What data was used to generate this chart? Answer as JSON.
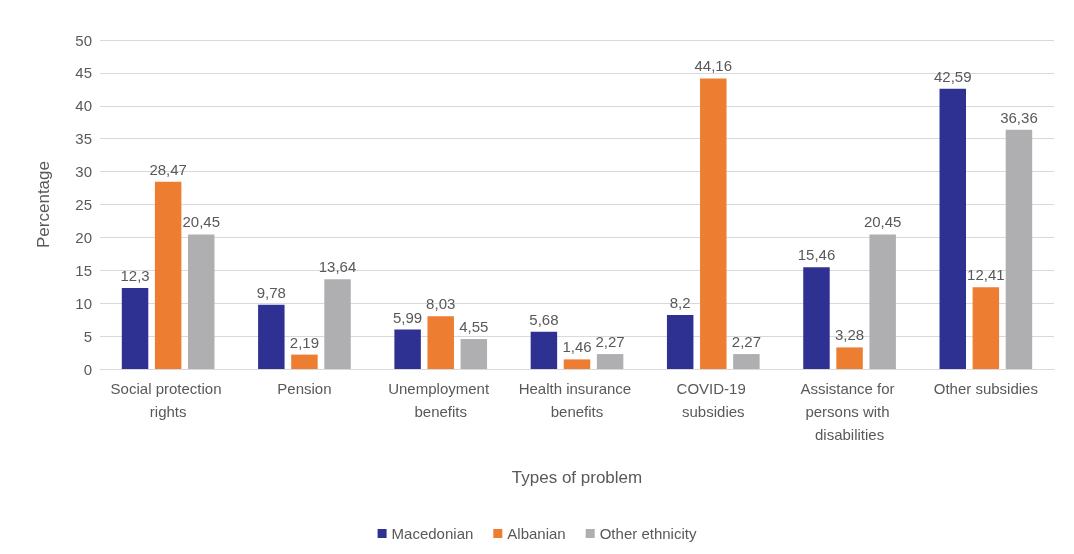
{
  "chart_data": {
    "type": "bar",
    "xlabel": "Types of problem",
    "ylabel": "Percentage",
    "categories": [
      "Social protection rights",
      "Pension",
      "Unemployment benefits",
      "Health insurance benefits",
      "COVID-19 subsidies",
      "Assistance for persons with disabilities",
      "Other subsidies"
    ],
    "series": [
      {
        "name": "Macedonian",
        "color": "#2e3192",
        "values": [
          12.3,
          9.78,
          5.99,
          5.68,
          8.2,
          15.46,
          42.59
        ],
        "value_labels": [
          "12,3",
          "9,78",
          "5,99",
          "5,68",
          "8,2",
          "15,46",
          "42,59"
        ]
      },
      {
        "name": "Albanian",
        "color": "#ed7d31",
        "values": [
          28.47,
          2.19,
          8.03,
          1.46,
          44.16,
          3.28,
          12.41
        ],
        "value_labels": [
          "28,47",
          "2,19",
          "8,03",
          "1,46",
          "44,16",
          "3,28",
          "12,41"
        ]
      },
      {
        "name": "Other ethnicity",
        "color": "#afafb1",
        "values": [
          20.45,
          13.64,
          4.55,
          2.27,
          2.27,
          20.45,
          36.36
        ],
        "value_labels": [
          "20,45",
          "13,64",
          "4,55",
          "2,27",
          "2,27",
          "20,45",
          "36,36"
        ]
      }
    ],
    "ylim": [
      0,
      50
    ],
    "yticks": [
      0,
      5,
      10,
      15,
      20,
      25,
      30,
      35,
      40,
      45,
      50
    ],
    "grid": "y",
    "legend": "bottom"
  }
}
